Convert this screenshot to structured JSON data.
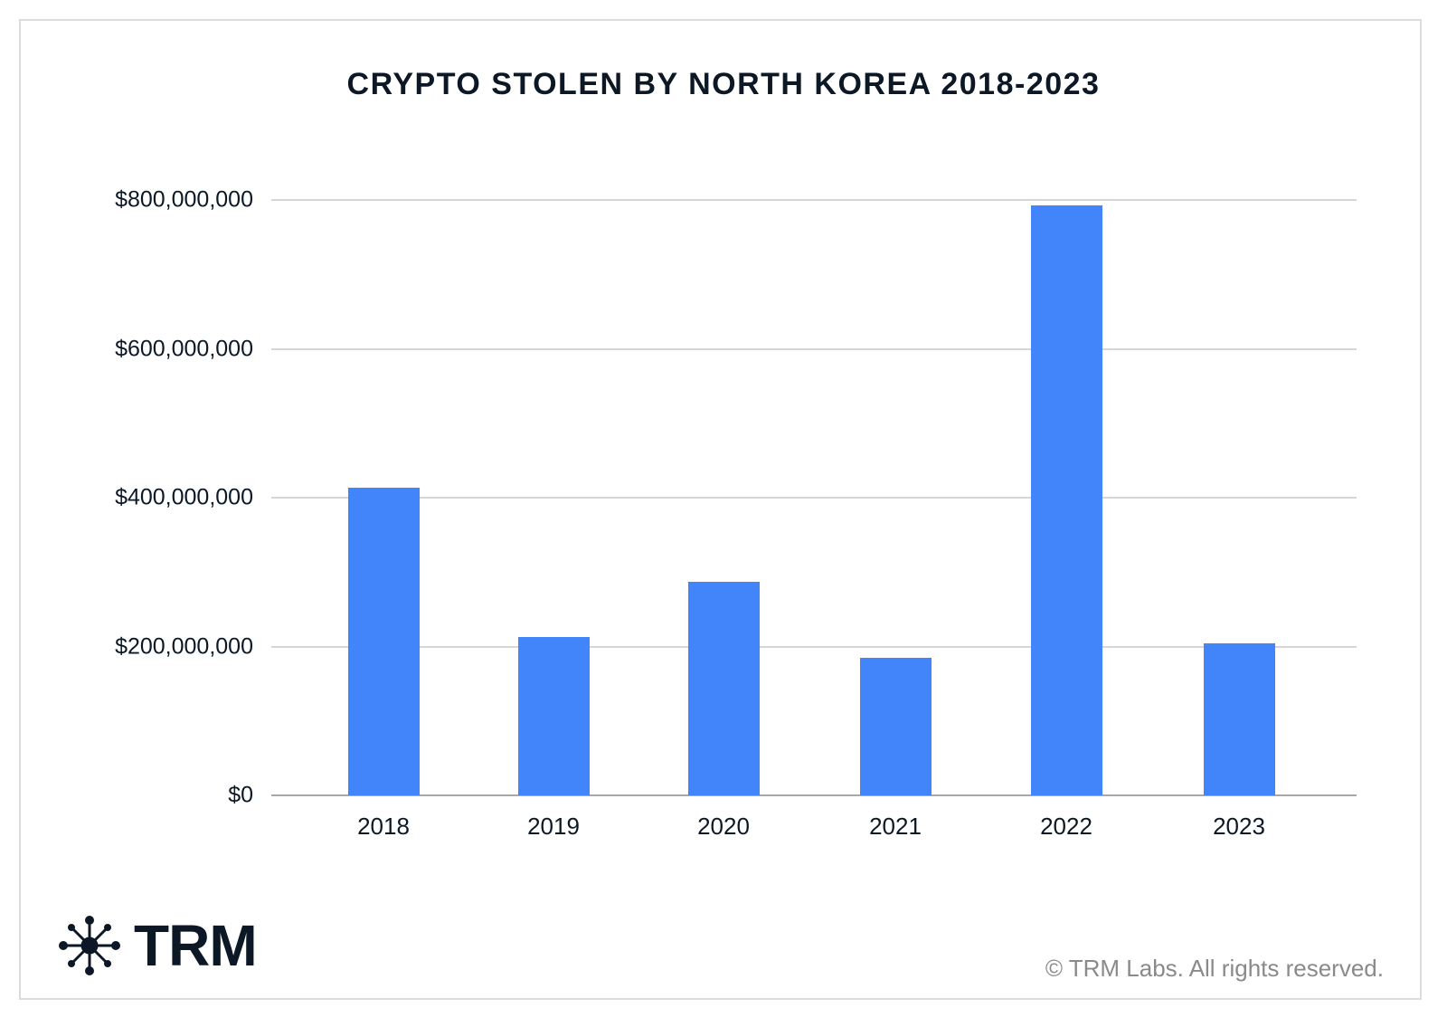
{
  "chart_data": {
    "type": "bar",
    "title": "CRYPTO STOLEN BY NORTH KOREA 2018-2023",
    "xlabel": "",
    "ylabel": "",
    "categories": [
      "2018",
      "2019",
      "2020",
      "2021",
      "2022",
      "2023"
    ],
    "values": [
      413000000,
      213000000,
      287000000,
      185000000,
      793000000,
      204000000
    ],
    "ylim": [
      0,
      800000000
    ],
    "yticks": [
      0,
      200000000,
      400000000,
      600000000,
      800000000
    ],
    "ytick_labels": [
      "$0",
      "$200,000,000",
      "$400,000,000",
      "$600,000,000",
      "$800,000,000"
    ],
    "grid": true,
    "legend": null,
    "bar_color": "#4285fa"
  },
  "branding": {
    "logo_text": "TRM",
    "logo_icon": "network-node-icon",
    "copyright": "© TRM Labs. All rights reserved."
  },
  "colors": {
    "text": "#0d1826",
    "grid": "#d6d6d6",
    "axis": "#a8a8a8",
    "bar": "#4285fa",
    "copyright": "#8a8a8a"
  }
}
